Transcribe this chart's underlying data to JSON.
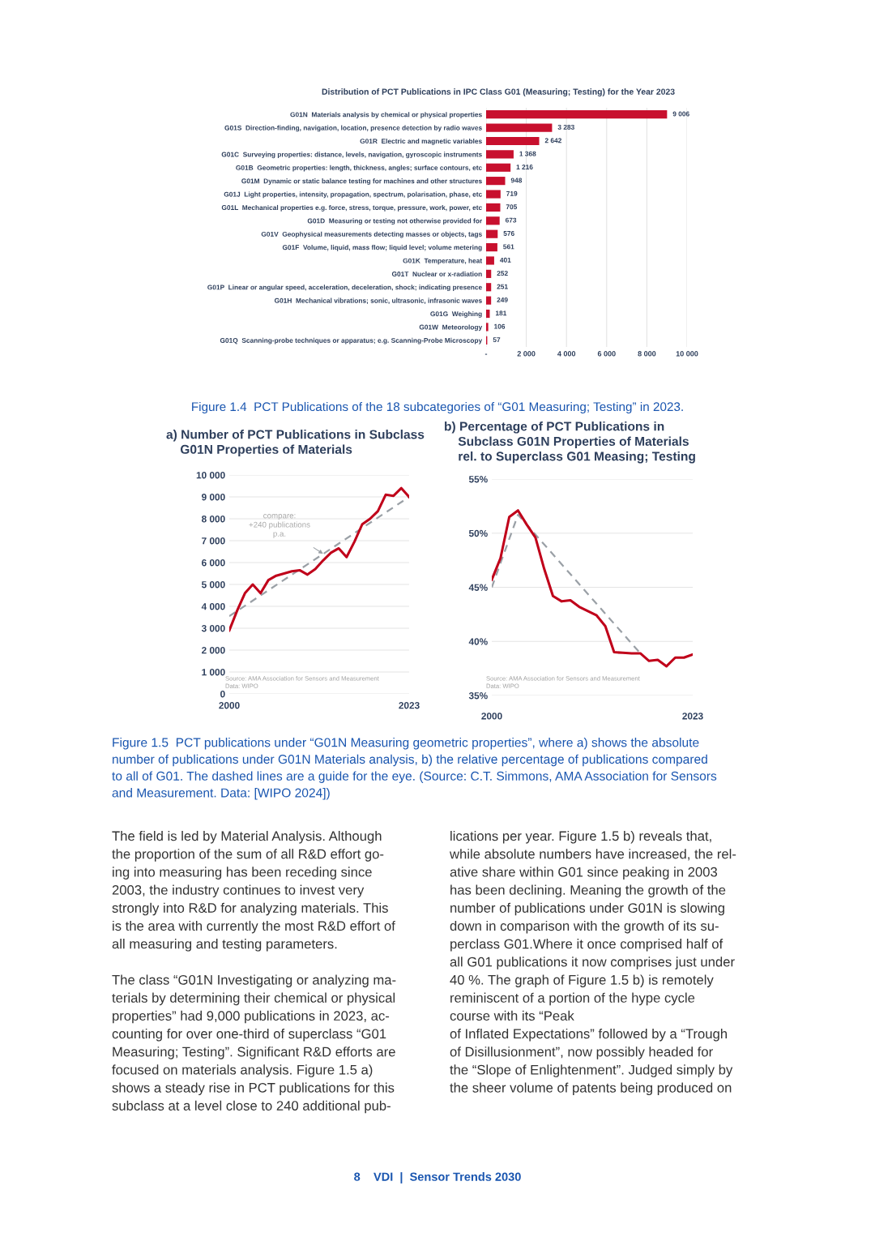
{
  "chart_data": [
    {
      "type": "bar",
      "orientation": "horizontal",
      "title": "Distribution of PCT Publications in IPC Class G01 (Measuring; Testing) for the Year 2023",
      "categories": [
        "G01N  Materials analysis by chemical or physical properties",
        "G01S  Direction-finding, navigation, location, presence detection by radio waves",
        "G01R  Electric and magnetic variables",
        "G01C  Surveying properties: distance, levels, navigation, gyroscopic instruments",
        "G01B  Geometric properties: length, thickness, angles; surface contours, etc",
        "G01M  Dynamic or static balance testing for machines and other structures",
        "G01J  Light properties, intensity, propagation, spectrum, polarisation, phase, etc",
        "G01L  Mechanical properties e.g. force, stress, torque, pressure, work, power, etc",
        "G01D  Measuring or testing not otherwise provided for",
        "G01V  Geophysical measurements detecting masses or objects, tags",
        "G01F  Volume, liquid, mass flow; liquid level; volume metering",
        "G01K  Temperature, heat",
        "G01T  Nuclear or x-radiation",
        "G01P  Linear or angular speed, acceleration, deceleration, shock; indicating presence",
        "G01H  Mechanical vibrations; sonic, ultrasonic, infrasonic waves",
        "G01G  Weighing",
        "G01W  Meteorology",
        "G01Q  Scanning-probe techniques or apparatus; e.g. Scanning-Probe Microscopy"
      ],
      "values": [
        9006,
        3283,
        2642,
        1368,
        1216,
        948,
        719,
        705,
        673,
        576,
        561,
        401,
        252,
        251,
        249,
        181,
        106,
        57
      ],
      "value_labels": [
        "9 006",
        "3 283",
        "2 642",
        "1 368",
        "1 216",
        "948",
        "719",
        "705",
        "673",
        "576",
        "561",
        "401",
        "252",
        "251",
        "249",
        "181",
        "106",
        "57"
      ],
      "color": "#c8102e",
      "xlim": [
        0,
        10000
      ],
      "xticks": [
        {
          "value": 0,
          "label": "-"
        },
        {
          "value": 2000,
          "label": "2 000"
        },
        {
          "value": 4000,
          "label": "4 000"
        },
        {
          "value": 6000,
          "label": "6 000"
        },
        {
          "value": 8000,
          "label": "8 000"
        },
        {
          "value": 10000,
          "label": "10 000"
        }
      ],
      "grid": "x",
      "annotations": [
        "Figure 1.4  PCT Publications of the 18 subcategories of “G01 Measuring; Testing” in 2023."
      ]
    },
    {
      "type": "line",
      "title": "a) Number of PCT Publications in Subclass\n    G01N Properties of Materials",
      "x": [
        2000,
        2001,
        2002,
        2003,
        2004,
        2005,
        2006,
        2007,
        2008,
        2009,
        2010,
        2011,
        2012,
        2013,
        2014,
        2015,
        2016,
        2017,
        2018,
        2019,
        2020,
        2021,
        2022,
        2023
      ],
      "series": [
        {
          "type": "line",
          "line_style": "dashed",
          "color": "#9aa0a6",
          "x": [
            2000,
            2023
          ],
          "values": [
            3550,
            9000
          ]
        },
        {
          "type": "line",
          "line_style": "solid",
          "color": "#c0001a",
          "values": [
            2900,
            3800,
            4600,
            5000,
            4600,
            5200,
            5400,
            5500,
            5600,
            5650,
            5450,
            5700,
            6100,
            6450,
            6650,
            6250,
            6950,
            7750,
            8000,
            8350,
            9100,
            9050,
            9400,
            9000
          ]
        }
      ],
      "xlim": [
        2000,
        2023
      ],
      "xticks": [
        2000,
        2023
      ],
      "ylim": [
        0,
        10000
      ],
      "yticks": [
        0,
        {
          "value": 1000,
          "label": "1 000"
        },
        {
          "value": 2000,
          "label": "2 000"
        },
        {
          "value": 3000,
          "label": "3 000"
        },
        {
          "value": 4000,
          "label": "4 000"
        },
        {
          "value": 5000,
          "label": "5 000"
        },
        {
          "value": 6000,
          "label": "6 000"
        },
        {
          "value": 7000,
          "label": "7 000"
        },
        {
          "value": 8000,
          "label": "8 000"
        },
        {
          "value": 9000,
          "label": "9 000"
        },
        {
          "value": 10000,
          "label": "10 000"
        }
      ],
      "grid": "y",
      "annotations": [
        "Source: AMA Association for Sensors and Measurement\nData: WIPO",
        {
          "text": "compare:\n+240 publications\np.a.",
          "x": 2012,
          "y": 6400
        }
      ]
    },
    {
      "type": "line",
      "title": "b) Percentage of PCT Publications in\n    Subclass G01N Properties of Materials\n    rel. to Superclass G01 Measing; Testing",
      "x": [
        2000,
        2001,
        2002,
        2003,
        2004,
        2005,
        2006,
        2007,
        2008,
        2009,
        2010,
        2011,
        2012,
        2013,
        2014,
        2015,
        2016,
        2017,
        2018,
        2019,
        2020,
        2021,
        2022,
        2023
      ],
      "series": [
        {
          "type": "line",
          "line_style": "dashed",
          "color": "#9aa0a6",
          "x": [
            2000,
            2003,
            2017
          ],
          "values": [
            45.0,
            51.7,
            38.9
          ]
        },
        {
          "type": "line",
          "line_style": "solid",
          "color": "#c0001a",
          "values": [
            45.7,
            47.7,
            51.5,
            52.1,
            50.8,
            49.6,
            46.7,
            44.2,
            43.7,
            43.8,
            43.2,
            42.8,
            42.4,
            41.4,
            39.0,
            38.95,
            38.9,
            38.9,
            38.2,
            38.3,
            37.7,
            38.5,
            38.5,
            38.8
          ]
        }
      ],
      "xlim": [
        2000,
        2023
      ],
      "xticks": [
        2000,
        2023
      ],
      "ylim": [
        35,
        55
      ],
      "yticks": [
        {
          "value": 35,
          "label": "35%"
        },
        {
          "value": 40,
          "label": "40%"
        },
        {
          "value": 45,
          "label": "45%"
        },
        {
          "value": 50,
          "label": "50%"
        },
        {
          "value": 55,
          "label": "55%"
        }
      ],
      "grid": "y",
      "annotations": [
        "Source: AMA Association for Sensors and Measurement\nData: WIPO",
        "Figure 1.5  PCT publications under “G01N Measuring geometric properties”, where a) shows the absolute\nnumber of publications under G01N Materials analysis, b) the relative percentage of publications compared\nto all of G01. The dashed lines are a guide for the eye. (Source: C.T. Simmons, AMA Association for Sensors\nand Measurement. Data: [WIPO 2024])",
        "The field is led by Material Analysis. Although\nthe proportion of the sum of all R&D effort go-\ning into measuring has been receding since\n2003, the industry continues to invest very\nstrongly into R&D for analyzing materials. This\nis the area with currently the most R&D effort of\nall measuring and testing parameters.\n\nThe class “G01N Investigating or analyzing ma-\nterials by determining their chemical or physical\nproperties” had 9,000 publications in 2023, ac-\ncounting for over one-third of superclass “G01\nMeasuring; Testing”. Significant R&D efforts are\nfocused on materials analysis. Figure 1.5 a)\nshows a steady rise in PCT publications for this\nsubclass at a level close to 240 additional pub-",
        "lications per year. Figure 1.5 b) reveals that,\nwhile absolute numbers have increased, the rel-\native share within G01 since peaking in 2003\nhas been declining. Meaning the growth of the\nnumber of publications under G01N is slowing\ndown in comparison with the growth of its su-\nperclass G01.Where it once comprised half of\nall G01 publications it now comprises just under\n40 %. The graph of Figure 1.5 b) is remotely\nreminiscent of a portion of the hype cycle\ncourse with its “Peak\nof Inflated Expectations” followed by a “Trough\nof Disillusionment”, now possibly headed for\nthe “Slope of Enlightenment”. Judged simply by\nthe sheer volume of patents being produced on",
        "8    VDI  |  Sensor Trends 2030"
      ]
    }
  ]
}
